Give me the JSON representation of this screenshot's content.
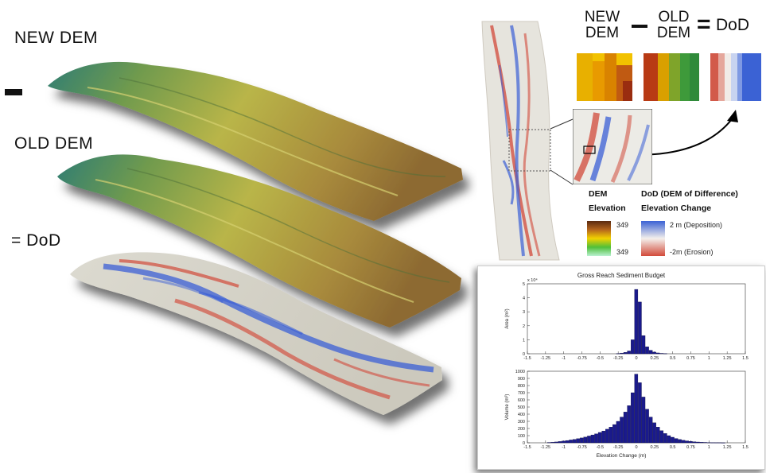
{
  "labels": {
    "new_dem": "NEW DEM",
    "minus": "–",
    "old_dem": "OLD DEM",
    "equals_dod": "= DoD"
  },
  "equation": {
    "new_line1": "NEW",
    "new_line2": "DEM",
    "minus": "—",
    "old_line1": "OLD",
    "old_line2": "DEM",
    "equals": "=",
    "dod": "DoD"
  },
  "legend": {
    "dem_title1": "DEM",
    "dem_title2": "Elevation",
    "dem_high": "349",
    "dem_low": "349",
    "dod_title1": "DoD (DEM of Difference)",
    "dod_title2": "Elevation Change",
    "dod_high": "2 m (Deposition)",
    "dod_low": "-2m (Erosion)"
  },
  "colors": {
    "deposition": "#3b5fd6",
    "erosion": "#d24a3a",
    "bar": "#1a1a8c",
    "terrain_green": "#3f8a5a",
    "terrain_yellow": "#c7c24a",
    "terrain_brown": "#9a7a3a"
  },
  "chart_data": {
    "type": "bar",
    "title": "Gross Reach Sediment Budget",
    "xlabel": "Elevation Change (m)",
    "xlim": [
      -1.5,
      1.5
    ],
    "x_ticks": [
      "-1.5",
      "-1.25",
      "-1",
      "-0.75",
      "-0.5",
      "-0.25",
      "0",
      "0.25",
      "0.5",
      "0.75",
      "1",
      "1.25",
      "1.5"
    ],
    "panels": [
      {
        "ylabel": "Area (m²)",
        "exponent": "x 10⁴",
        "ylim": [
          0,
          5
        ],
        "y_ticks": [
          "0",
          "1",
          "2",
          "3",
          "4",
          "5"
        ],
        "x": [
          -0.25,
          -0.2,
          -0.15,
          -0.1,
          -0.05,
          0,
          0.05,
          0.1,
          0.15,
          0.2,
          0.25,
          0.3,
          0.35,
          0.4
        ],
        "values": [
          0.02,
          0.05,
          0.1,
          0.2,
          1.0,
          4.6,
          3.7,
          1.3,
          0.5,
          0.25,
          0.12,
          0.06,
          0.03,
          0.02
        ]
      },
      {
        "ylabel": "Volume (m³)",
        "ylim": [
          0,
          1000
        ],
        "y_ticks": [
          "0",
          "100",
          "200",
          "300",
          "400",
          "500",
          "600",
          "700",
          "800",
          "900",
          "1000"
        ],
        "x": [
          -1.2,
          -1.15,
          -1.1,
          -1.05,
          -1.0,
          -0.95,
          -0.9,
          -0.85,
          -0.8,
          -0.75,
          -0.7,
          -0.65,
          -0.6,
          -0.55,
          -0.5,
          -0.45,
          -0.4,
          -0.35,
          -0.3,
          -0.25,
          -0.2,
          -0.15,
          -0.1,
          -0.05,
          0,
          0.05,
          0.1,
          0.15,
          0.2,
          0.25,
          0.3,
          0.35,
          0.4,
          0.45,
          0.5,
          0.55,
          0.6,
          0.65,
          0.7,
          0.75,
          0.8,
          0.85,
          0.9,
          0.95,
          1.0,
          1.05,
          1.1,
          1.15,
          1.2
        ],
        "values": [
          5,
          8,
          12,
          18,
          25,
          32,
          40,
          48,
          58,
          68,
          80,
          95,
          110,
          125,
          145,
          165,
          190,
          220,
          255,
          300,
          360,
          430,
          520,
          700,
          960,
          840,
          640,
          470,
          360,
          280,
          220,
          170,
          130,
          100,
          78,
          60,
          46,
          35,
          27,
          20,
          15,
          11,
          8,
          6,
          4,
          3,
          2,
          2,
          1
        ]
      }
    ]
  }
}
